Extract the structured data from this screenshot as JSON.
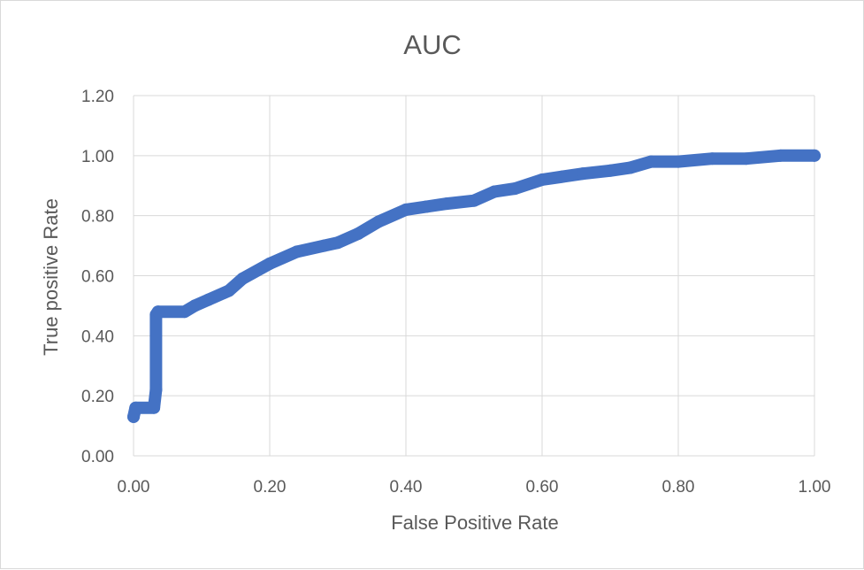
{
  "chart_data": {
    "type": "line",
    "title": "AUC",
    "xlabel": "False Positive Rate",
    "ylabel": "True positive Rate",
    "xlim": [
      0,
      1
    ],
    "ylim": [
      0,
      1.2
    ],
    "x_ticks": [
      "0.00",
      "0.20",
      "0.40",
      "0.60",
      "0.80",
      "1.00"
    ],
    "y_ticks": [
      "0.00",
      "0.20",
      "0.40",
      "0.60",
      "0.80",
      "1.00",
      "1.20"
    ],
    "grid": true,
    "legend": "none",
    "series": [
      {
        "color": "#4472c4",
        "x": [
          0.0,
          0.003,
          0.03,
          0.033,
          0.033,
          0.036,
          0.036,
          0.075,
          0.09,
          0.11,
          0.14,
          0.16,
          0.2,
          0.24,
          0.28,
          0.3,
          0.33,
          0.36,
          0.4,
          0.43,
          0.46,
          0.5,
          0.53,
          0.56,
          0.6,
          0.63,
          0.66,
          0.7,
          0.73,
          0.76,
          0.8,
          0.85,
          0.9,
          0.95,
          1.0
        ],
        "y": [
          0.13,
          0.16,
          0.16,
          0.22,
          0.47,
          0.48,
          0.48,
          0.48,
          0.5,
          0.52,
          0.55,
          0.59,
          0.64,
          0.68,
          0.7,
          0.71,
          0.74,
          0.78,
          0.82,
          0.83,
          0.84,
          0.85,
          0.88,
          0.89,
          0.92,
          0.93,
          0.94,
          0.95,
          0.96,
          0.98,
          0.98,
          0.99,
          0.99,
          1.0,
          1.0
        ]
      }
    ]
  }
}
